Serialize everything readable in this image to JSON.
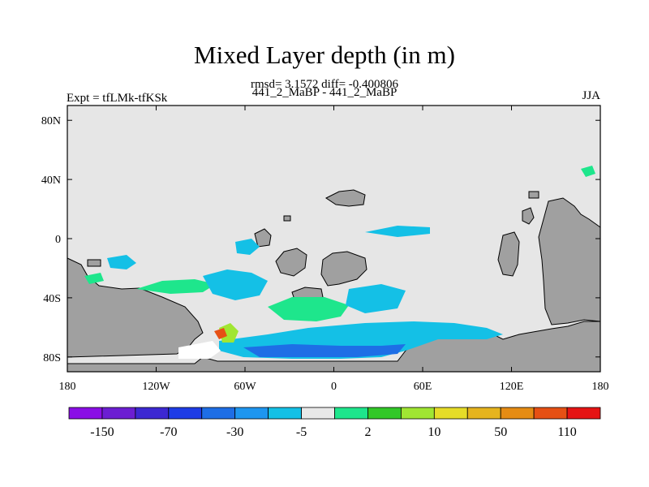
{
  "chart_data": {
    "type": "heatmap",
    "title": "Mixed Layer depth (in m)",
    "subtitle": "rmsd= 3.1572 diff= -0.400806",
    "center_label": "441_2_MaBP - 441_2_MaBP",
    "left_label": "Expt = tfLMk-tfKSk",
    "right_label": "JJA",
    "x_ticks": [
      "180",
      "120W",
      "60W",
      "0",
      "60E",
      "120E",
      "180"
    ],
    "y_ticks": [
      "80N",
      "40N",
      "0",
      "40S",
      "80S"
    ],
    "xlim": [
      -180,
      180
    ],
    "ylim": [
      -90,
      90
    ],
    "land_color": "#a0a0a0",
    "ocean_color": "#e6e6e6",
    "colorbar": {
      "colors": [
        "#8a0ee6",
        "#6c1ed2",
        "#3c28d2",
        "#1e3ce6",
        "#1e6ee6",
        "#1e96f0",
        "#14c0e6",
        "#e8e8e8",
        "#1ee68c",
        "#32c828",
        "#a0e632",
        "#e6dc28",
        "#e6b41e",
        "#e68c14",
        "#e65014",
        "#e61414"
      ],
      "labels": [
        "-150",
        "-70",
        "-30",
        "-5",
        "2",
        "10",
        "50",
        "110"
      ]
    }
  }
}
